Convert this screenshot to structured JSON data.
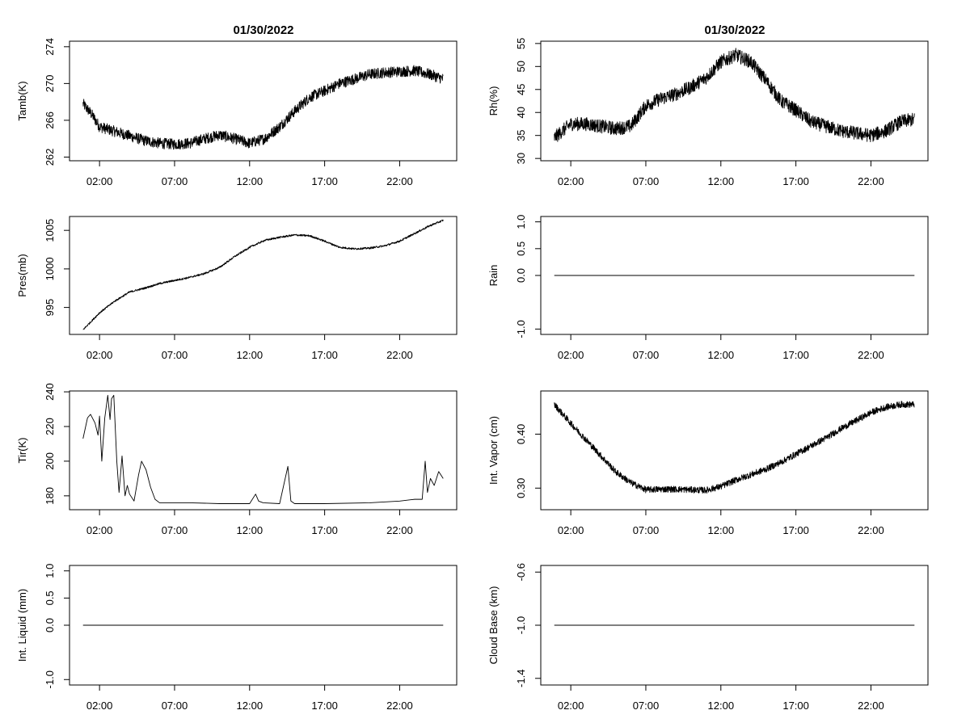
{
  "figure": {
    "title_left": "01/30/2022",
    "title_right": "01/30/2022"
  },
  "x_tick_labels": [
    "02:00",
    "07:00",
    "12:00",
    "17:00",
    "22:00"
  ],
  "chart_data": [
    {
      "id": "tamb",
      "type": "line",
      "ylabel": "Tamb(K)",
      "xlim": [
        0.0,
        25.8
      ],
      "ylim": [
        261.6,
        274.6
      ],
      "yticks": [
        262,
        266,
        270,
        274
      ],
      "x_range": [
        0.9,
        24.9
      ],
      "noise": 0.6,
      "series": [
        {
          "x": [
            0.9,
            1.5,
            2.0,
            3.0,
            4.0,
            5.0,
            6.0,
            7.0,
            8.0,
            9.0,
            10.0,
            11.0,
            12.0,
            13.0,
            14.0,
            15.0,
            16.0,
            17.0,
            18.0,
            19.0,
            20.0,
            21.0,
            22.0,
            23.0,
            24.0,
            24.9
          ],
          "y": [
            267.8,
            266.6,
            265.3,
            264.8,
            264.3,
            263.8,
            263.5,
            263.4,
            263.5,
            264.0,
            264.4,
            264.0,
            263.5,
            264.0,
            265.3,
            267.0,
            268.5,
            269.2,
            270.0,
            270.5,
            271.0,
            271.2,
            271.3,
            271.4,
            271.0,
            270.5
          ]
        }
      ]
    },
    {
      "id": "rh",
      "type": "line",
      "ylabel": "Rh(%)",
      "xlim": [
        0.0,
        25.8
      ],
      "ylim": [
        29.5,
        55.5
      ],
      "yticks": [
        30,
        35,
        40,
        45,
        50,
        55
      ],
      "x_range": [
        0.9,
        24.9
      ],
      "noise": 1.5,
      "series": [
        {
          "x": [
            0.9,
            2.0,
            3.0,
            4.0,
            5.0,
            6.0,
            7.0,
            8.0,
            9.0,
            10.0,
            11.0,
            12.0,
            13.0,
            14.0,
            15.0,
            16.0,
            17.0,
            18.0,
            19.0,
            20.0,
            21.0,
            22.0,
            23.0,
            24.0,
            24.9
          ],
          "y": [
            34.5,
            37.5,
            37.5,
            37.0,
            36.5,
            37.0,
            41.5,
            43.0,
            44.0,
            45.5,
            47.5,
            51.0,
            52.5,
            51.0,
            47.0,
            42.5,
            40.5,
            38.0,
            37.0,
            36.0,
            35.5,
            35.0,
            36.0,
            38.0,
            38.5
          ]
        }
      ]
    },
    {
      "id": "pres",
      "type": "line",
      "ylabel": "Pres(mb)",
      "xlim": [
        0.0,
        25.8
      ],
      "ylim": [
        991.5,
        1006.8
      ],
      "yticks": [
        995,
        1000,
        1005
      ],
      "x_range": [
        0.9,
        24.9
      ],
      "noise": 0.12,
      "series": [
        {
          "x": [
            0.9,
            2.0,
            3.0,
            4.0,
            5.0,
            6.0,
            7.0,
            8.0,
            9.0,
            10.0,
            11.0,
            12.0,
            13.0,
            14.0,
            15.0,
            16.0,
            17.0,
            18.0,
            19.0,
            20.0,
            21.0,
            22.0,
            23.0,
            24.0,
            24.9
          ],
          "y": [
            992.1,
            994.3,
            995.8,
            997.0,
            997.5,
            998.1,
            998.5,
            998.9,
            999.4,
            1000.2,
            1001.6,
            1002.8,
            1003.7,
            1004.1,
            1004.4,
            1004.3,
            1003.6,
            1002.8,
            1002.6,
            1002.7,
            1003.0,
            1003.6,
            1004.6,
            1005.6,
            1006.3
          ]
        }
      ]
    },
    {
      "id": "rain",
      "type": "line",
      "ylabel": "Rain",
      "xlim": [
        0.0,
        25.8
      ],
      "ylim": [
        -1.1,
        1.1
      ],
      "yticks": [
        -1.0,
        0.0,
        0.5,
        1.0
      ],
      "ytick_labels": [
        "-1.0",
        "0.0",
        "0.5",
        "1.0"
      ],
      "x_range": [
        0.9,
        24.9
      ],
      "noise": 0,
      "series": [
        {
          "x": [
            0.9,
            24.9
          ],
          "y": [
            0,
            0
          ]
        }
      ]
    },
    {
      "id": "tir",
      "type": "line",
      "ylabel": "Tir(K)",
      "xlim": [
        0.0,
        25.8
      ],
      "ylim": [
        172.0,
        240.5
      ],
      "yticks": [
        180,
        200,
        220,
        240
      ],
      "x_range": [
        0.9,
        24.9
      ],
      "noise": 0,
      "series": [
        {
          "x": [
            0.9,
            1.2,
            1.4,
            1.7,
            1.9,
            2.0,
            2.15,
            2.35,
            2.55,
            2.7,
            2.8,
            2.95,
            3.15,
            3.3,
            3.5,
            3.7,
            3.85,
            4.0,
            4.3,
            4.6,
            4.8,
            5.1,
            5.4,
            5.7,
            6.0,
            8.0,
            10.0,
            12.0,
            12.4,
            12.6,
            12.9,
            14.0,
            14.55,
            14.75,
            15.0,
            17.0,
            20.0,
            22.0,
            23.0,
            23.5,
            23.7,
            23.85,
            24.05,
            24.3,
            24.6,
            24.9
          ],
          "y": [
            213,
            225,
            227,
            222,
            215,
            226,
            200,
            225,
            238,
            224,
            236,
            238,
            200,
            182,
            203,
            180,
            186,
            181,
            177,
            192,
            200,
            195,
            185,
            178,
            176,
            176,
            175.5,
            175.5,
            181,
            177,
            176,
            175.5,
            197,
            177,
            175.5,
            175.5,
            176,
            177,
            178,
            178,
            200,
            182,
            190,
            186,
            194,
            190
          ]
        }
      ]
    },
    {
      "id": "vapor",
      "type": "line",
      "ylabel": "Int. Vapor (cm)",
      "xlim": [
        0.0,
        25.8
      ],
      "ylim": [
        0.26,
        0.48
      ],
      "yticks": [
        0.3,
        0.4
      ],
      "ytick_labels": [
        "0.30",
        "0.40"
      ],
      "x_range": [
        0.9,
        24.9
      ],
      "noise": 0.006,
      "series": [
        {
          "x": [
            0.9,
            2.0,
            3.0,
            4.0,
            5.0,
            6.0,
            7.0,
            8.0,
            9.0,
            10.0,
            11.0,
            12.0,
            13.0,
            14.0,
            15.0,
            16.0,
            17.0,
            18.0,
            19.0,
            20.0,
            21.0,
            22.0,
            23.0,
            24.0,
            24.9
          ],
          "y": [
            0.455,
            0.42,
            0.39,
            0.36,
            0.33,
            0.31,
            0.297,
            0.298,
            0.298,
            0.297,
            0.296,
            0.303,
            0.315,
            0.325,
            0.335,
            0.348,
            0.363,
            0.378,
            0.393,
            0.41,
            0.425,
            0.44,
            0.45,
            0.455,
            0.455
          ]
        }
      ]
    },
    {
      "id": "liquid",
      "type": "line",
      "ylabel": "Int. Liquid (mm)",
      "xlim": [
        0.0,
        25.8
      ],
      "ylim": [
        -1.1,
        1.1
      ],
      "yticks": [
        -1.0,
        0.0,
        0.5,
        1.0
      ],
      "ytick_labels": [
        "-1.0",
        "0.0",
        "0.5",
        "1.0"
      ],
      "x_range": [
        0.9,
        24.9
      ],
      "noise": 0,
      "series": [
        {
          "x": [
            0.9,
            24.9
          ],
          "y": [
            0,
            0
          ]
        }
      ]
    },
    {
      "id": "cloudbase",
      "type": "line",
      "ylabel": "Cloud Base (km)",
      "xlim": [
        0.0,
        25.8
      ],
      "ylim": [
        -1.45,
        -0.55
      ],
      "yticks": [
        -1.4,
        -1.0,
        -0.6
      ],
      "ytick_labels": [
        "-1.4",
        "-1.0",
        "-0.6"
      ],
      "x_range": [
        0.9,
        24.9
      ],
      "noise": 0,
      "series": [
        {
          "x": [
            0.9,
            24.9
          ],
          "y": [
            -1.0,
            -1.0
          ]
        }
      ]
    }
  ],
  "x_ticks": [
    2,
    7,
    12,
    17,
    22
  ]
}
